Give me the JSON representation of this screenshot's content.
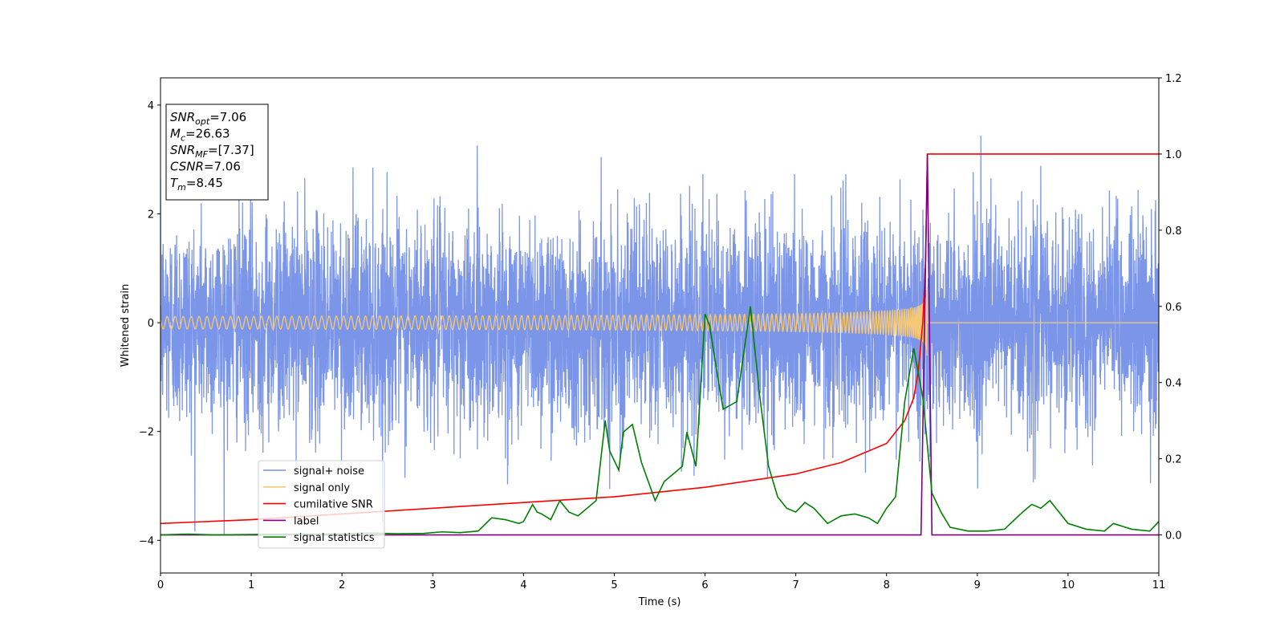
{
  "chart_data": {
    "type": "line",
    "xlabel": "Time (s)",
    "ylabel": "Whitened strain",
    "xlim": [
      0,
      11
    ],
    "ylim": [
      -4.6,
      4.5
    ],
    "y2lim": [
      -0.1,
      1.2
    ],
    "x_ticks": [
      "0",
      "1",
      "2",
      "3",
      "4",
      "5",
      "6",
      "7",
      "8",
      "9",
      "10",
      "11"
    ],
    "y_ticks": [
      "4",
      "2",
      "0",
      "−2",
      "−4"
    ],
    "y_tick_values": [
      4,
      2,
      0,
      -2,
      -4
    ],
    "y2_ticks": [
      "1.2",
      "1.0",
      "0.8",
      "0.6",
      "0.4",
      "0.2",
      "0.0"
    ],
    "y2_tick_values": [
      1.2,
      1.0,
      0.8,
      0.6,
      0.4,
      0.2,
      0.0
    ],
    "legend_placement": "lower-left",
    "annotation": {
      "lines": [
        {
          "base": "SNR",
          "sub": "opt",
          "value": "=7.06"
        },
        {
          "base": "M",
          "sub": "c",
          "value": "=26.63"
        },
        {
          "base": "SNR",
          "sub": "MF",
          "value": "=[7.37]"
        },
        {
          "base": "CSNR",
          "sub": "",
          "value": "=7.06"
        },
        {
          "base": "T",
          "sub": "m",
          "value": "=8.45"
        }
      ]
    },
    "series": [
      {
        "name": "signal+ noise",
        "color": "#7893e8",
        "axis": "left",
        "style": "noise",
        "std": 1.0,
        "sample_rate": 512
      },
      {
        "name": "signal only",
        "color": "#f5c878",
        "axis": "left",
        "style": "chirp",
        "merger_time": 8.45,
        "peak_amplitude": 0.7
      },
      {
        "name": "cumilative SNR",
        "color": "#ff0000",
        "axis": "right",
        "x": [
          0,
          1,
          2,
          3,
          4,
          5,
          6,
          7,
          7.5,
          8,
          8.2,
          8.3,
          8.35,
          8.4,
          8.43,
          8.45,
          8.46,
          11
        ],
        "values": [
          0.03,
          0.04,
          0.055,
          0.07,
          0.085,
          0.1,
          0.125,
          0.16,
          0.19,
          0.24,
          0.3,
          0.36,
          0.43,
          0.56,
          0.72,
          1.0,
          1.0,
          1.0
        ]
      },
      {
        "name": "label",
        "color": "#800080",
        "axis": "right",
        "x": [
          0,
          8.38,
          8.45,
          8.5,
          11
        ],
        "values": [
          0.0,
          0.0,
          1.0,
          0.0,
          0.0
        ]
      },
      {
        "name": "signal statistics",
        "color": "#008000",
        "axis": "right",
        "x": [
          0,
          0.3,
          0.6,
          1.0,
          1.5,
          2.0,
          2.3,
          2.6,
          2.9,
          3.1,
          3.3,
          3.5,
          3.65,
          3.8,
          3.95,
          4.0,
          4.1,
          4.15,
          4.2,
          4.3,
          4.4,
          4.5,
          4.6,
          4.7,
          4.8,
          4.9,
          4.95,
          5.05,
          5.1,
          5.2,
          5.3,
          5.45,
          5.55,
          5.65,
          5.75,
          5.8,
          5.9,
          6.0,
          6.05,
          6.15,
          6.2,
          6.35,
          6.5,
          6.6,
          6.7,
          6.8,
          6.9,
          7.0,
          7.1,
          7.2,
          7.35,
          7.5,
          7.65,
          7.8,
          7.9,
          8.0,
          8.1,
          8.2,
          8.3,
          8.4,
          8.5,
          8.6,
          8.7,
          8.9,
          9.1,
          9.3,
          9.5,
          9.6,
          9.7,
          9.8,
          9.9,
          10.0,
          10.2,
          10.4,
          10.5,
          10.7,
          10.9,
          11.0
        ],
        "values": [
          0.0,
          0.002,
          0.0,
          0.001,
          0.002,
          0.003,
          0.005,
          0.003,
          0.004,
          0.008,
          0.006,
          0.01,
          0.045,
          0.04,
          0.03,
          0.035,
          0.08,
          0.06,
          0.055,
          0.04,
          0.09,
          0.06,
          0.05,
          0.07,
          0.09,
          0.3,
          0.22,
          0.17,
          0.27,
          0.29,
          0.19,
          0.09,
          0.14,
          0.16,
          0.18,
          0.27,
          0.18,
          0.58,
          0.55,
          0.4,
          0.33,
          0.35,
          0.6,
          0.37,
          0.18,
          0.1,
          0.07,
          0.06,
          0.085,
          0.07,
          0.03,
          0.05,
          0.055,
          0.045,
          0.03,
          0.07,
          0.1,
          0.35,
          0.49,
          0.36,
          0.11,
          0.06,
          0.02,
          0.01,
          0.01,
          0.015,
          0.06,
          0.08,
          0.07,
          0.09,
          0.06,
          0.03,
          0.015,
          0.01,
          0.03,
          0.015,
          0.01,
          0.035
        ]
      }
    ]
  }
}
